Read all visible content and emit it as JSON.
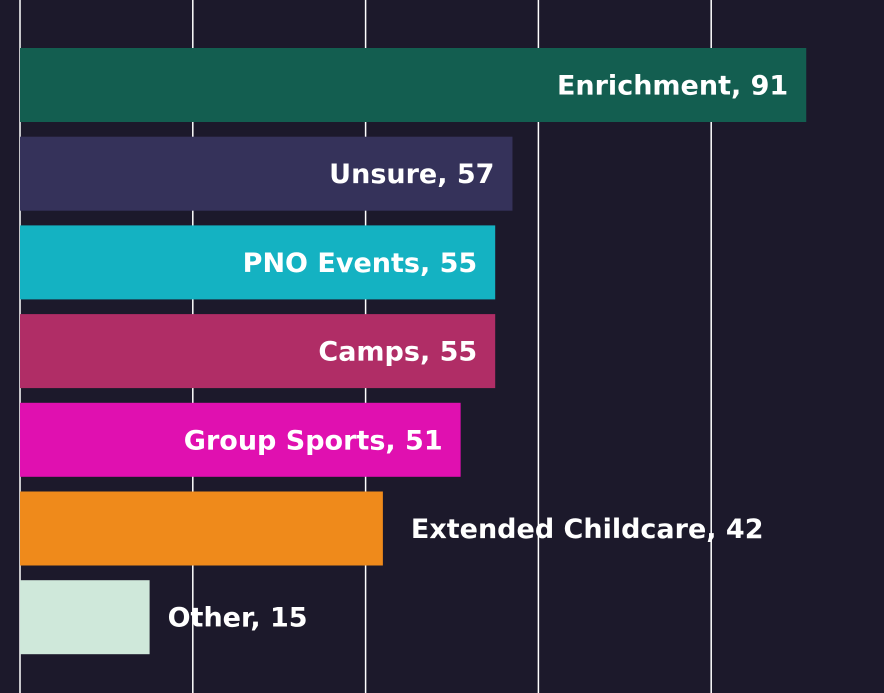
{
  "chart_data": {
    "type": "bar",
    "orientation": "horizontal",
    "values": [
      91,
      57,
      55,
      55,
      51,
      42,
      15
    ],
    "value_labels": [
      "Enrichment, 91",
      "Unsure, 57",
      "PNO Events, 55",
      "Camps, 55",
      "Group Sports, 51",
      "Extended Childcare, 42",
      "Other, 15"
    ],
    "colors": [
      "#135e50",
      "#35325a",
      "#14b2c2",
      "#b02d66",
      "#e010b0",
      "#ef8a1b",
      "#cfe8da"
    ],
    "xlim": [
      0,
      100
    ],
    "xticks": [
      0,
      20,
      40,
      60,
      80
    ],
    "grid": true
  }
}
